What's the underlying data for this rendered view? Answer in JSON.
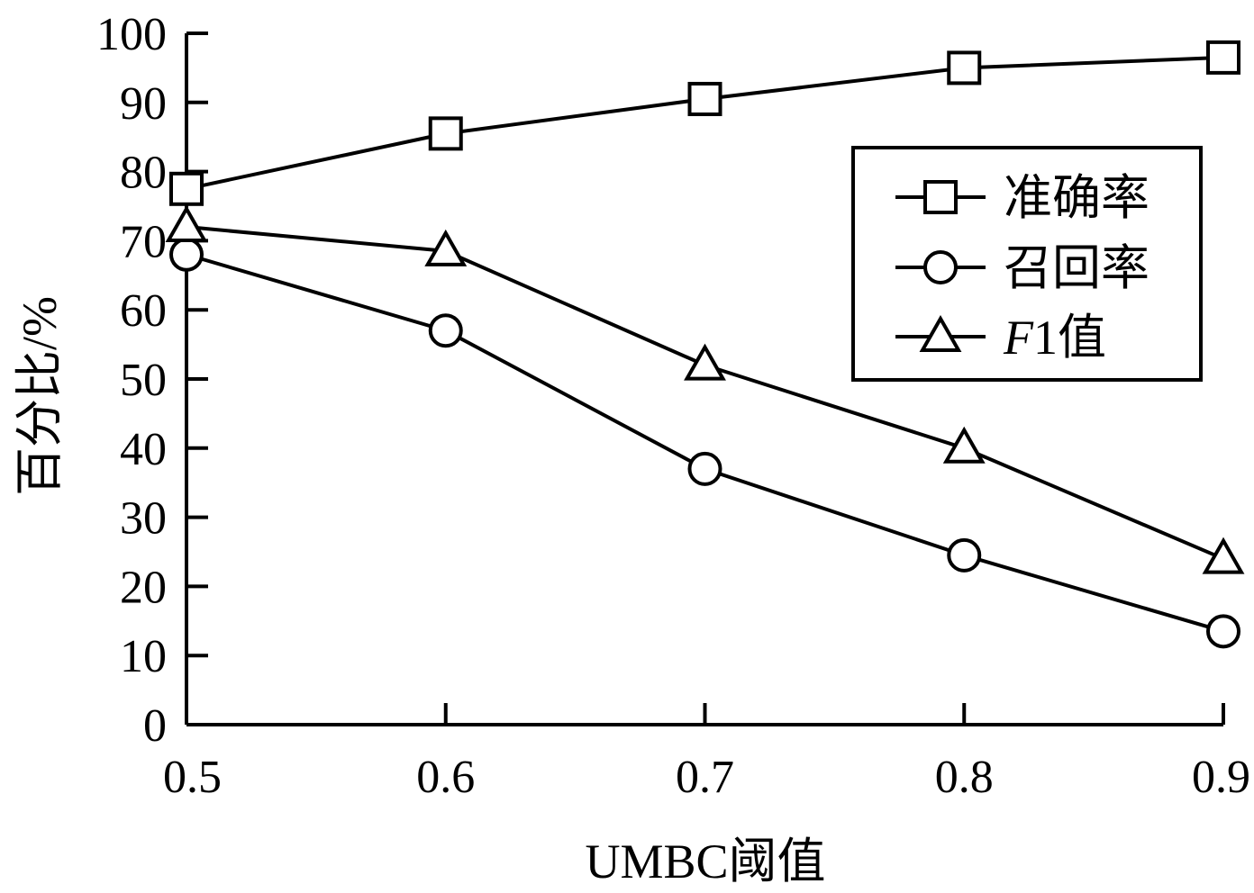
{
  "chart_data": {
    "type": "line",
    "x": [
      0.5,
      0.6,
      0.7,
      0.8,
      0.9
    ],
    "x_tick_labels": [
      "0.5",
      "0.6",
      "0.7",
      "0.8",
      "0.9"
    ],
    "xlim": [
      0.5,
      0.9
    ],
    "ylim": [
      0,
      100
    ],
    "y_ticks": [
      0,
      10,
      20,
      30,
      40,
      50,
      60,
      70,
      80,
      90,
      100
    ],
    "y_tick_labels": [
      "0",
      "10",
      "20",
      "30",
      "40",
      "50",
      "60",
      "70",
      "80",
      "90",
      "100"
    ],
    "xlabel": "UMBC阈值",
    "ylabel": "百分比/%",
    "title": "",
    "grid": false,
    "legend_position": "right",
    "series": [
      {
        "name": "准确率",
        "marker": "square",
        "values": [
          77.5,
          85.5,
          90.5,
          95,
          96.5
        ]
      },
      {
        "name": "召回率",
        "marker": "circle",
        "values": [
          68,
          57,
          37,
          24.5,
          13.5
        ]
      },
      {
        "name": "F1值",
        "name_italic_part": "F",
        "name_rest": "1值",
        "marker": "triangle",
        "values": [
          72,
          68.5,
          52,
          40,
          24
        ]
      }
    ]
  }
}
